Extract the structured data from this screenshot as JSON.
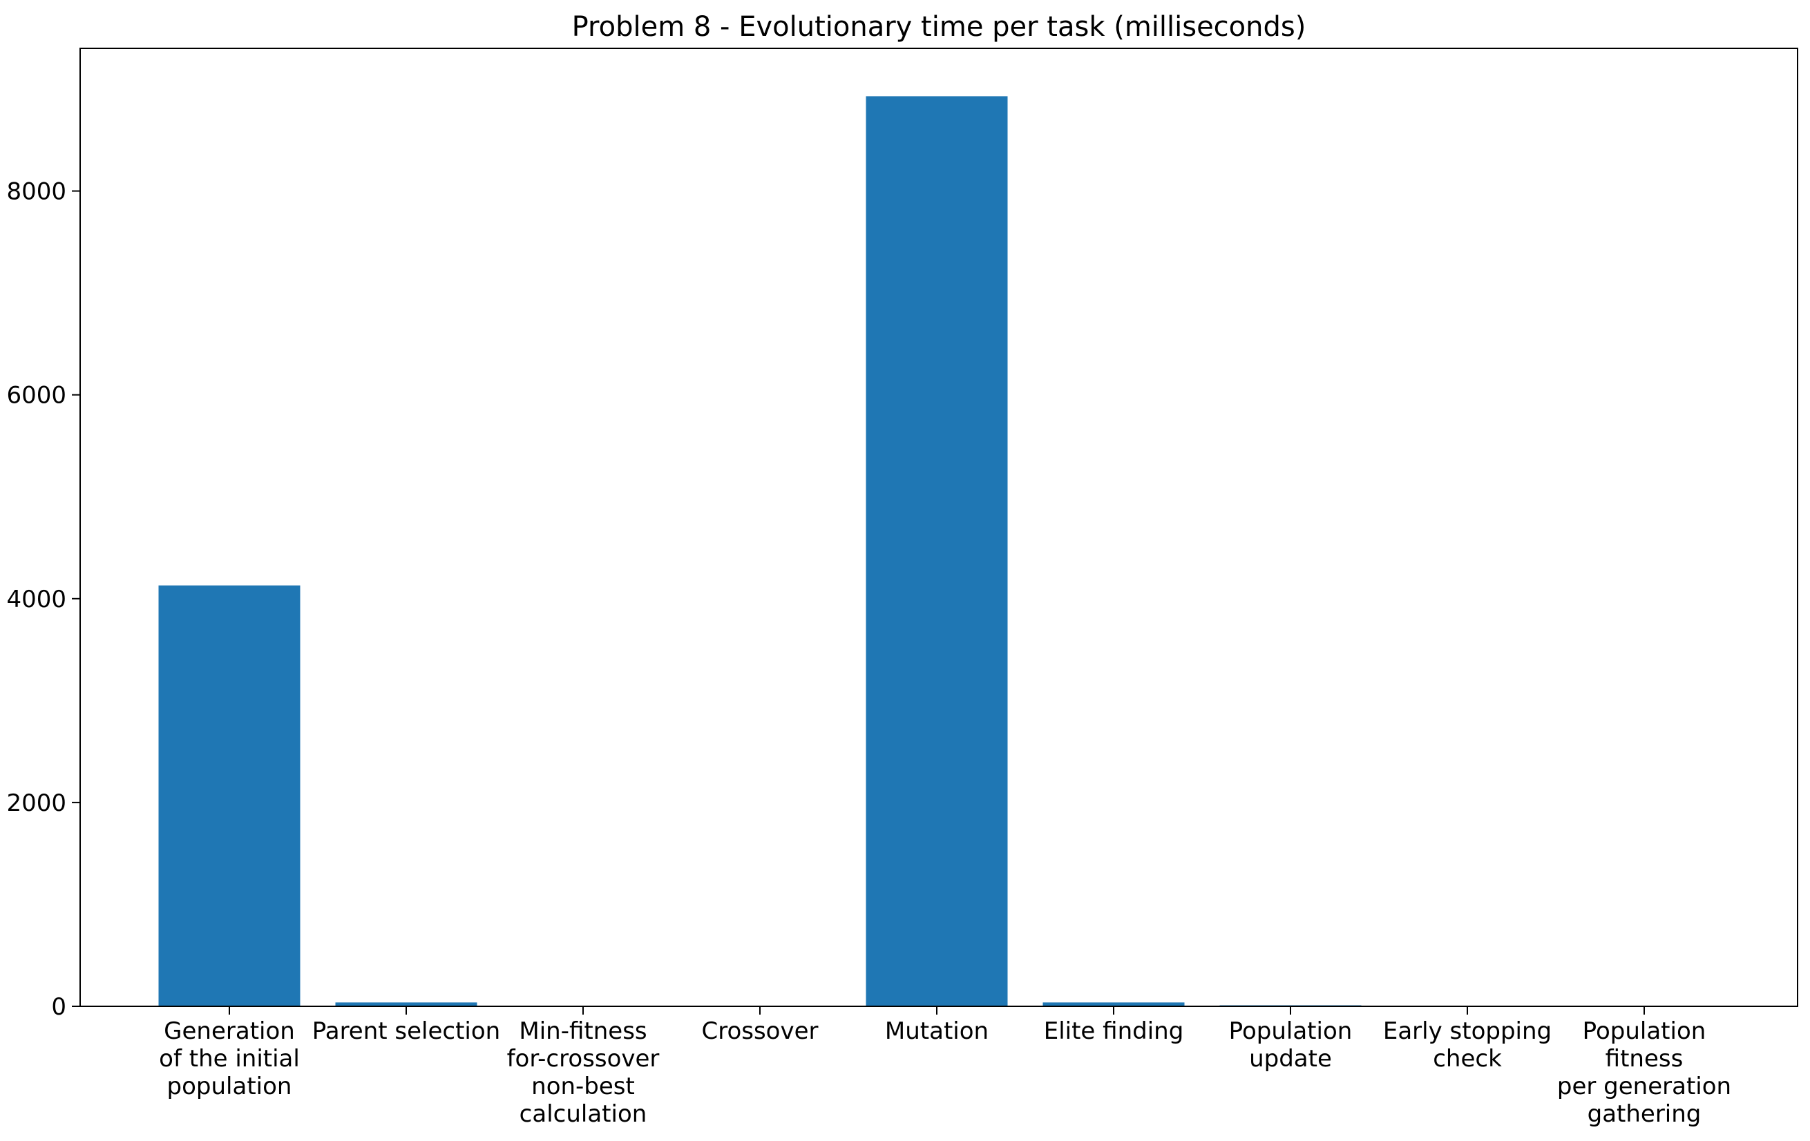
{
  "chart_data": {
    "type": "bar",
    "title": "Problem 8 - Evolutionary time per task (milliseconds)",
    "xlabel": "",
    "ylabel": "",
    "categories": [
      "Generation\nof the initial\npopulation",
      "Parent selection",
      "Min-fitness\nfor-crossover\nnon-best\ncalculation",
      "Crossover",
      "Mutation",
      "Elite finding",
      "Population\nupdate",
      "Early stopping\ncheck",
      "Population\nfitness\nper generation\ngathering"
    ],
    "values": [
      4130,
      38,
      1,
      1,
      8930,
      38,
      10,
      1,
      1
    ],
    "ylim": [
      0,
      9400
    ],
    "yticks": [
      0,
      2000,
      4000,
      6000,
      8000
    ],
    "bar_color": "#1f77b4",
    "grid": false,
    "legend": "none"
  }
}
